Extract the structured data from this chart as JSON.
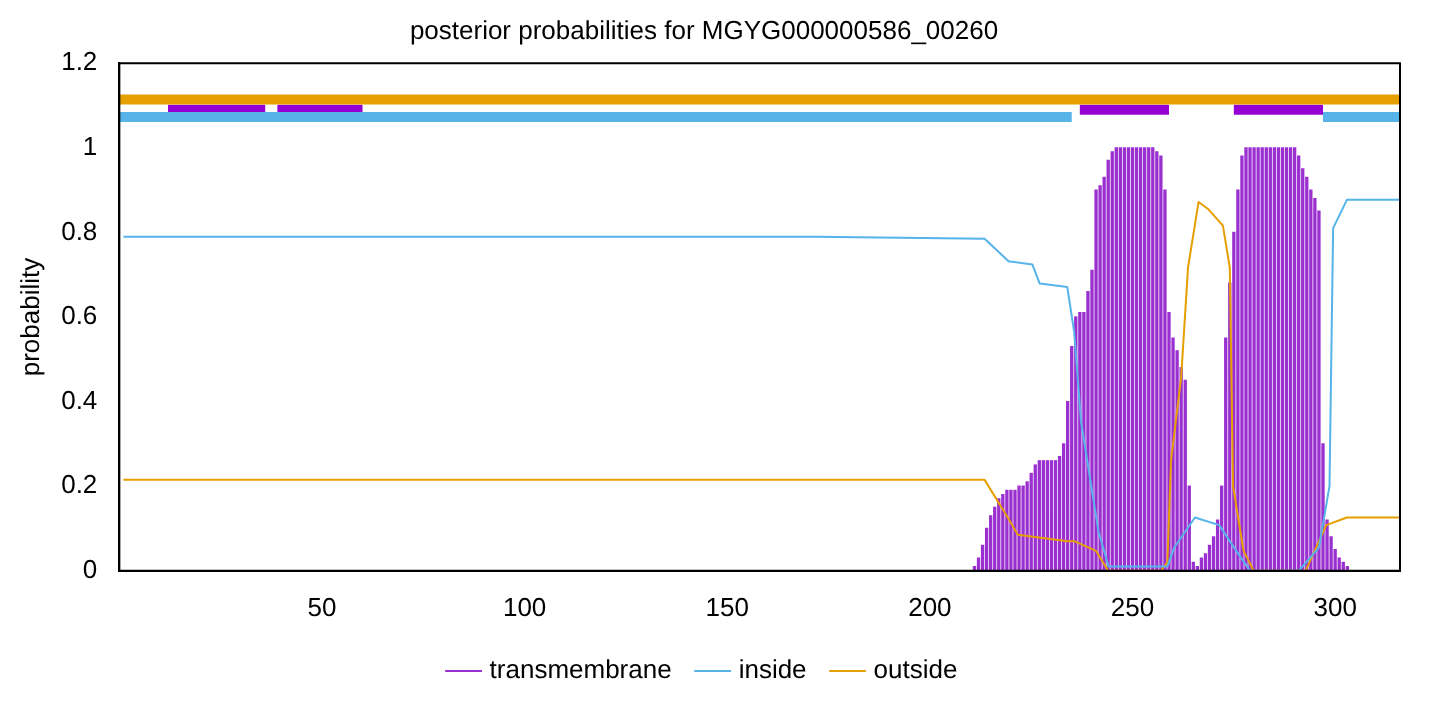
{
  "chart_data": {
    "type": "line",
    "title": "posterior probabilities for MGYG000000586_00260",
    "ylabel": "probability",
    "xlim": [
      0,
      316
    ],
    "xticks": [
      50,
      100,
      150,
      200,
      250,
      300
    ],
    "ylim": [
      0,
      1.2
    ],
    "yticks": [
      0,
      0.2,
      0.4,
      0.6,
      0.8,
      1,
      1.2
    ],
    "grid": false,
    "legend": "bottom",
    "marker": "none",
    "series": [
      {
        "name": "transmembrane",
        "type": "bar",
        "color": "#9b30d0",
        "x": [
          211,
          212,
          213,
          214,
          215,
          216,
          217,
          218,
          219,
          220,
          221,
          222,
          223,
          224,
          225,
          226,
          227,
          228,
          229,
          230,
          231,
          232,
          233,
          234,
          235,
          236,
          237,
          238,
          239,
          240,
          241,
          242,
          243,
          244,
          245,
          246,
          247,
          248,
          249,
          250,
          251,
          252,
          253,
          254,
          255,
          256,
          257,
          258,
          259,
          260,
          261,
          262,
          263,
          264,
          265,
          266,
          267,
          268,
          269,
          270,
          271,
          272,
          273,
          274,
          275,
          276,
          277,
          278,
          279,
          280,
          281,
          282,
          283,
          284,
          285,
          286,
          287,
          288,
          289,
          290,
          291,
          292,
          293,
          294,
          295,
          296,
          297,
          298,
          299,
          300,
          301,
          302,
          303
        ],
        "values": [
          0.01,
          0.03,
          0.06,
          0.1,
          0.13,
          0.15,
          0.17,
          0.18,
          0.19,
          0.19,
          0.19,
          0.2,
          0.2,
          0.21,
          0.23,
          0.25,
          0.26,
          0.26,
          0.26,
          0.26,
          0.26,
          0.27,
          0.3,
          0.4,
          0.53,
          0.6,
          0.61,
          0.61,
          0.66,
          0.71,
          0.9,
          0.91,
          0.93,
          0.97,
          0.99,
          1,
          1,
          1,
          1,
          1,
          1,
          1,
          1,
          1,
          1,
          0.99,
          0.98,
          0.9,
          0.61,
          0.55,
          0.52,
          0.48,
          0.45,
          0.2,
          0.02,
          0.01,
          0.03,
          0.04,
          0.06,
          0.08,
          0.12,
          0.2,
          0.55,
          0.68,
          0.8,
          0.9,
          0.98,
          1,
          1,
          1,
          1,
          1,
          1,
          1,
          1,
          1,
          1,
          1,
          1,
          1,
          0.98,
          0.95,
          0.93,
          0.9,
          0.88,
          0.85,
          0.3,
          0.12,
          0.08,
          0.05,
          0.03,
          0.02,
          0.01
        ]
      },
      {
        "name": "inside",
        "color": "#56b4e9",
        "x": [
          1,
          172,
          213.5,
          219.4,
          225.3,
          227.1,
          233.9,
          235.6,
          237.3,
          241.6,
          244.1,
          258.6,
          260.3,
          265.4,
          271.4,
          275.6,
          279,
          291,
          296,
          298.6,
          299.5,
          302.9,
          316
        ],
        "values": [
          0.79,
          0.79,
          0.785,
          0.732,
          0.724,
          0.679,
          0.671,
          0.565,
          0.352,
          0.093,
          0.01,
          0.01,
          0.055,
          0.126,
          0.108,
          0.047,
          0,
          0,
          0.055,
          0.2,
          0.81,
          0.877,
          0.877
        ]
      },
      {
        "name": "outside",
        "color": "#e69f00",
        "x": [
          1,
          213.5,
          219.4,
          221.7,
          234,
          235.6,
          241,
          244,
          257,
          258.6,
          259.5,
          262,
          263.7,
          266.3,
          268.8,
          272.3,
          274,
          274.8,
          277.4,
          279.9,
          292.7,
          297.8,
          302.9,
          316
        ],
        "values": [
          0.215,
          0.215,
          0.123,
          0.085,
          0.07,
          0.07,
          0.047,
          0,
          0,
          0.02,
          0.26,
          0.458,
          0.717,
          0.872,
          0.854,
          0.816,
          0.717,
          0.2,
          0.047,
          0,
          0,
          0.108,
          0.126,
          0.126
        ]
      },
      {
        "color": "#e69f00",
        "x": [
          0,
          316
        ],
        "values": [
          1.114,
          1.114
        ]
      },
      {
        "color": "#56b4e9",
        "x": [
          0,
          235,
          236,
          297,
          316
        ],
        "values": [
          1.073,
          1.073,
          null,
          1.073,
          1.073
        ]
      },
      {
        "color": "#9400d3",
        "x": [
          12,
          36,
          37,
          39,
          60,
          61,
          237,
          259,
          260,
          275,
          297
        ],
        "values": [
          1.09,
          1.09,
          null,
          1.09,
          1.09,
          null,
          1.09,
          1.09,
          null,
          1.09,
          1.09
        ]
      }
    ]
  }
}
